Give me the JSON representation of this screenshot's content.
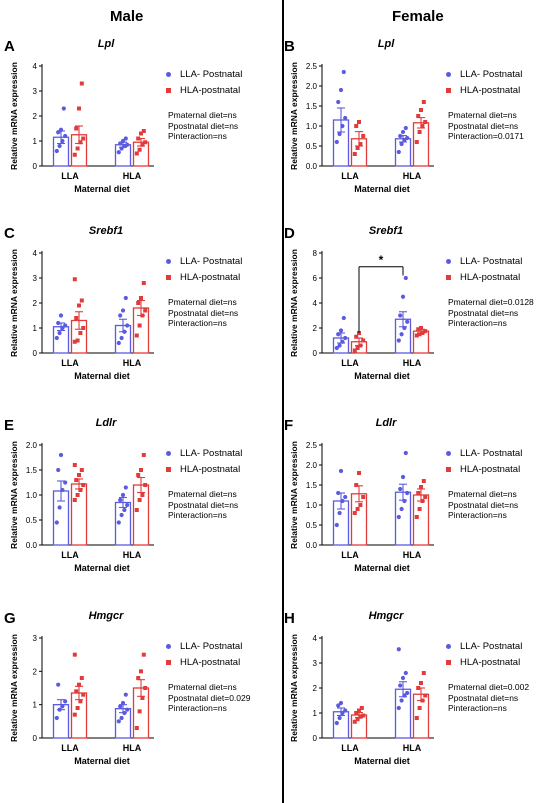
{
  "columns": {
    "male": "Male",
    "female": "Female"
  },
  "colors": {
    "lla": "#5b5be0",
    "hla": "#e23b3b"
  },
  "panels": [
    {
      "letter": "A",
      "gene": "Lpl",
      "ylabel": "Relative mRNA expression",
      "xlabel": "Maternal diet",
      "legend": [
        "LLA- Postnatal",
        "HLA-postnatal"
      ],
      "stats": [
        "Pmaternal diet=ns",
        "Ppostnatal diet=ns",
        "Pinteraction=ns"
      ],
      "chart_data": {
        "type": "bar",
        "categories": [
          "LLA",
          "HLA"
        ],
        "ylim": [
          0,
          4
        ],
        "yticks": [
          0,
          1,
          2,
          3,
          4
        ],
        "series": [
          {
            "name": "LLA- Postnatal",
            "values": [
              1.15,
              0.85
            ],
            "err": [
              0.25,
              0.1
            ],
            "points": [
              [
                0.6,
                0.8,
                1.0,
                1.2,
                1.35,
                1.45,
                2.3
              ],
              [
                0.55,
                0.7,
                0.8,
                0.85,
                0.9,
                1.0,
                1.1
              ]
            ]
          },
          {
            "name": "HLA-postnatal",
            "values": [
              1.25,
              0.95
            ],
            "err": [
              0.35,
              0.15
            ],
            "points": [
              [
                0.45,
                0.7,
                0.95,
                1.1,
                1.5,
                2.3,
                3.3
              ],
              [
                0.5,
                0.65,
                0.85,
                0.95,
                1.1,
                1.3,
                1.4
              ]
            ]
          }
        ]
      }
    },
    {
      "letter": "B",
      "gene": "Lpl",
      "ylabel": "Relative mRNA expression",
      "xlabel": "Maternal diet",
      "legend": [
        "LLA- Postnatal",
        "HLA-postnatal"
      ],
      "stats": [
        "Pmaternal diet=ns",
        "Ppostnatal diet=ns",
        "Pinteraction=0.0171"
      ],
      "chart_data": {
        "type": "bar",
        "categories": [
          "LLA",
          "HLA"
        ],
        "ylim": [
          0,
          2.5
        ],
        "yticks": [
          0.0,
          0.5,
          1.0,
          1.5,
          2.0,
          2.5
        ],
        "series": [
          {
            "name": "LLA- Postnatal",
            "values": [
              1.15,
              0.68
            ],
            "err": [
              0.3,
              0.08
            ],
            "points": [
              [
                0.6,
                0.8,
                1.0,
                1.2,
                1.6,
                1.9,
                2.35
              ],
              [
                0.35,
                0.55,
                0.65,
                0.7,
                0.75,
                0.85,
                0.95
              ]
            ]
          },
          {
            "name": "HLA-postnatal",
            "values": [
              0.68,
              1.08
            ],
            "err": [
              0.18,
              0.13
            ],
            "points": [
              [
                0.3,
                0.45,
                0.55,
                0.75,
                1.0,
                1.1
              ],
              [
                0.6,
                0.85,
                1.0,
                1.1,
                1.25,
                1.4,
                1.6
              ]
            ]
          }
        ]
      }
    },
    {
      "letter": "C",
      "gene": "Srebf1",
      "ylabel": "Relative mRNA expression",
      "xlabel": "Maternal diet",
      "legend": [
        "LLA- Postnatal",
        "HLA-postnatal"
      ],
      "stats": [
        "Pmaternal diet=ns",
        "Ppostnatal diet=ns",
        "Pinteraction=ns"
      ],
      "chart_data": {
        "type": "bar",
        "categories": [
          "LLA",
          "HLA"
        ],
        "ylim": [
          0,
          4
        ],
        "yticks": [
          0,
          1,
          2,
          3,
          4
        ],
        "series": [
          {
            "name": "LLA- Postnatal",
            "values": [
              1.05,
              1.1
            ],
            "err": [
              0.15,
              0.25
            ],
            "points": [
              [
                0.6,
                0.8,
                1.0,
                1.1,
                1.2,
                1.5
              ],
              [
                0.4,
                0.6,
                0.85,
                1.1,
                1.5,
                1.7,
                2.2
              ]
            ]
          },
          {
            "name": "HLA-postnatal",
            "values": [
              1.3,
              1.8
            ],
            "err": [
              0.35,
              0.3
            ],
            "points": [
              [
                0.45,
                0.5,
                0.8,
                1.0,
                1.4,
                1.9,
                2.1,
                2.95
              ],
              [
                0.7,
                1.1,
                1.5,
                1.7,
                2.0,
                2.2,
                2.8
              ]
            ]
          }
        ]
      }
    },
    {
      "letter": "D",
      "gene": "Srebf1",
      "ylabel": "Relative mRNA expression",
      "xlabel": "Maternal diet",
      "legend": [
        "LLA- Postnatal",
        "HLA-postnatal"
      ],
      "stats": [
        "Pmaternal diet=0.0128",
        "Ppostnatal diet=ns",
        "Pinteraction=ns"
      ],
      "annotation": "*",
      "chart_data": {
        "type": "bar",
        "categories": [
          "LLA",
          "HLA"
        ],
        "ylim": [
          0,
          8
        ],
        "yticks": [
          0,
          2,
          4,
          6,
          8
        ],
        "series": [
          {
            "name": "LLA- Postnatal",
            "values": [
              1.2,
              2.7
            ],
            "err": [
              0.4,
              0.6
            ],
            "points": [
              [
                0.4,
                0.6,
                0.9,
                1.2,
                1.5,
                1.8,
                2.8
              ],
              [
                1.0,
                1.5,
                2.0,
                2.5,
                3.0,
                4.5,
                6.0
              ]
            ]
          },
          {
            "name": "HLA-postnatal",
            "values": [
              0.9,
              1.75
            ],
            "err": [
              0.3,
              0.15
            ],
            "points": [
              [
                0.2,
                0.4,
                0.6,
                1.0,
                1.3,
                1.6
              ],
              [
                1.4,
                1.5,
                1.6,
                1.75,
                1.9,
                2.0
              ]
            ]
          }
        ]
      }
    },
    {
      "letter": "E",
      "gene": "Ldlr",
      "ylabel": "Relative mRNA expression",
      "xlabel": "Maternal diet",
      "legend": [
        "LLA- Postnatal",
        "HLA-postnatal"
      ],
      "stats": [
        "Pmaternal diet=ns",
        "Ppostnatal diet=ns",
        "Pinteraction=ns"
      ],
      "chart_data": {
        "type": "bar",
        "categories": [
          "LLA",
          "HLA"
        ],
        "ylim": [
          0,
          2.0
        ],
        "yticks": [
          0.0,
          0.5,
          1.0,
          1.5,
          2.0
        ],
        "series": [
          {
            "name": "LLA- Postnatal",
            "values": [
              1.08,
              0.85
            ],
            "err": [
              0.2,
              0.1
            ],
            "points": [
              [
                0.45,
                0.75,
                1.1,
                1.25,
                1.5,
                1.8
              ],
              [
                0.45,
                0.6,
                0.7,
                0.8,
                0.9,
                1.0,
                1.15
              ]
            ]
          },
          {
            "name": "HLA-postnatal",
            "values": [
              1.22,
              1.2
            ],
            "err": [
              0.1,
              0.15
            ],
            "points": [
              [
                0.9,
                1.0,
                1.1,
                1.2,
                1.3,
                1.4,
                1.5,
                1.6
              ],
              [
                0.7,
                0.9,
                1.0,
                1.2,
                1.4,
                1.5,
                1.8
              ]
            ]
          }
        ]
      }
    },
    {
      "letter": "F",
      "gene": "Ldlr",
      "ylabel": "Relative mRNA expression",
      "xlabel": "Maternal diet",
      "legend": [
        "LLA- Postnatal",
        "HLA-postnatal"
      ],
      "stats": [
        "Pmaternal diet=ns",
        "Ppostnatal diet=ns",
        "Pinteraction=ns"
      ],
      "chart_data": {
        "type": "bar",
        "categories": [
          "LLA",
          "HLA"
        ],
        "ylim": [
          0,
          2.5
        ],
        "yticks": [
          0.0,
          0.5,
          1.0,
          1.5,
          2.0,
          2.5
        ],
        "series": [
          {
            "name": "LLA- Postnatal",
            "values": [
              1.1,
              1.32
            ],
            "err": [
              0.2,
              0.2
            ],
            "points": [
              [
                0.5,
                0.8,
                1.1,
                1.2,
                1.3,
                1.85
              ],
              [
                0.7,
                0.9,
                1.1,
                1.3,
                1.4,
                1.7,
                2.3
              ]
            ]
          },
          {
            "name": "HLA-postnatal",
            "values": [
              1.28,
              1.25
            ],
            "err": [
              0.2,
              0.15
            ],
            "points": [
              [
                0.8,
                0.9,
                1.0,
                1.2,
                1.5,
                1.8
              ],
              [
                0.7,
                0.9,
                1.1,
                1.2,
                1.3,
                1.45,
                1.6
              ]
            ]
          }
        ]
      }
    },
    {
      "letter": "G",
      "gene": "Hmgcr",
      "ylabel": "Relative mRNA expression",
      "xlabel": "Maternal diet",
      "legend": [
        "LLA- Postnatal",
        "HLA-postnatal"
      ],
      "stats": [
        "Pmaternal diet=ns",
        "Ppostnatal diet=0.029",
        "Pinteraction=ns"
      ],
      "chart_data": {
        "type": "bar",
        "categories": [
          "LLA",
          "HLA"
        ],
        "ylim": [
          0,
          3
        ],
        "yticks": [
          0,
          1,
          2,
          3
        ],
        "series": [
          {
            "name": "LLA- Postnatal",
            "values": [
              1.0,
              0.88
            ],
            "err": [
              0.15,
              0.12
            ],
            "points": [
              [
                0.6,
                0.85,
                0.95,
                1.1,
                1.6
              ],
              [
                0.5,
                0.6,
                0.75,
                0.85,
                0.95,
                1.05,
                1.3
              ]
            ]
          },
          {
            "name": "HLA-postnatal",
            "values": [
              1.35,
              1.5
            ],
            "err": [
              0.2,
              0.25
            ],
            "points": [
              [
                0.7,
                0.9,
                1.1,
                1.3,
                1.4,
                1.6,
                1.8,
                2.5
              ],
              [
                0.3,
                0.8,
                1.2,
                1.5,
                1.8,
                2.0,
                2.5
              ]
            ]
          }
        ]
      }
    },
    {
      "letter": "H",
      "gene": "Hmgcr",
      "ylabel": "Relative mRNA expression",
      "xlabel": "Maternal diet",
      "legend": [
        "LLA- Postnatal",
        "HLA-postnatal"
      ],
      "stats": [
        "Pmaternal diet=0.002",
        "Ppostnatal diet=ns",
        "Pinteraction=ns"
      ],
      "chart_data": {
        "type": "bar",
        "categories": [
          "LLA",
          "HLA"
        ],
        "ylim": [
          0,
          4
        ],
        "yticks": [
          0,
          1,
          2,
          3,
          4
        ],
        "series": [
          {
            "name": "LLA- Postnatal",
            "values": [
              1.05,
              1.95
            ],
            "err": [
              0.15,
              0.3
            ],
            "points": [
              [
                0.6,
                0.8,
                1.0,
                1.1,
                1.3,
                1.4
              ],
              [
                1.2,
                1.5,
                1.7,
                1.8,
                2.1,
                2.4,
                2.6,
                3.55
              ]
            ]
          },
          {
            "name": "HLA-postnatal",
            "values": [
              0.92,
              1.75
            ],
            "err": [
              0.1,
              0.25
            ],
            "points": [
              [
                0.65,
                0.75,
                0.85,
                0.9,
                1.0,
                1.1,
                1.2
              ],
              [
                0.8,
                1.2,
                1.5,
                1.7,
                2.0,
                2.2,
                2.6
              ]
            ]
          }
        ]
      }
    }
  ]
}
